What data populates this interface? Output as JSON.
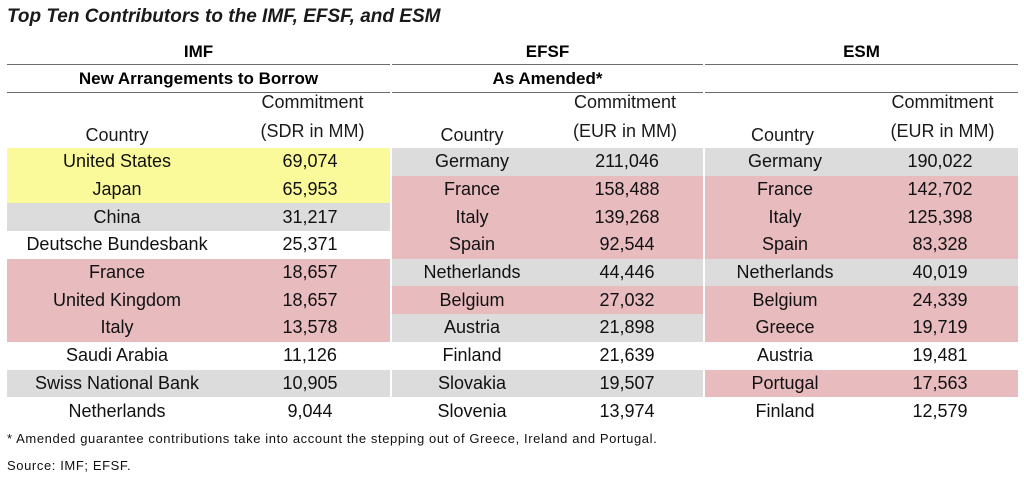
{
  "title": "Top Ten Contributors to the IMF, EFSF, and ESM",
  "colors": {
    "yellow": "#fafa9a",
    "grey": "#dcdcdc",
    "pink": "#e8bcbf",
    "white": "#ffffff"
  },
  "imf": {
    "header": "IMF",
    "subheader": "New Arrangements to Borrow",
    "col_country": "Country",
    "col_commit_1": "Commitment",
    "col_commit_2": "(SDR in MM)",
    "rows": [
      {
        "country": "United States",
        "value": "69,074",
        "color": "yellow"
      },
      {
        "country": "Japan",
        "value": "65,953",
        "color": "yellow"
      },
      {
        "country": "China",
        "value": "31,217",
        "color": "grey"
      },
      {
        "country": "Deutsche Bundesbank",
        "value": "25,371",
        "color": "white"
      },
      {
        "country": "France",
        "value": "18,657",
        "color": "pink"
      },
      {
        "country": "United Kingdom",
        "value": "18,657",
        "color": "pink"
      },
      {
        "country": "Italy",
        "value": "13,578",
        "color": "pink"
      },
      {
        "country": "Saudi Arabia",
        "value": "11,126",
        "color": "white"
      },
      {
        "country": "Swiss National Bank",
        "value": "10,905",
        "color": "grey"
      },
      {
        "country": "Netherlands",
        "value": "9,044",
        "color": "white"
      }
    ]
  },
  "efsf": {
    "header": "EFSF",
    "subheader": "As Amended*",
    "col_country": "Country",
    "col_commit_1": "Commitment",
    "col_commit_2": "(EUR in MM)",
    "rows": [
      {
        "country": "Germany",
        "value": "211,046",
        "color": "grey"
      },
      {
        "country": "France",
        "value": "158,488",
        "color": "pink"
      },
      {
        "country": "Italy",
        "value": "139,268",
        "color": "pink"
      },
      {
        "country": "Spain",
        "value": "92,544",
        "color": "pink"
      },
      {
        "country": "Netherlands",
        "value": "44,446",
        "color": "grey"
      },
      {
        "country": "Belgium",
        "value": "27,032",
        "color": "pink"
      },
      {
        "country": "Austria",
        "value": "21,898",
        "color": "grey"
      },
      {
        "country": "Finland",
        "value": "21,639",
        "color": "white"
      },
      {
        "country": "Slovakia",
        "value": "19,507",
        "color": "grey"
      },
      {
        "country": "Slovenia",
        "value": "13,974",
        "color": "white"
      }
    ]
  },
  "esm": {
    "header": "ESM",
    "subheader": "",
    "col_country": "Country",
    "col_commit_1": "Commitment",
    "col_commit_2": "(EUR in MM)",
    "rows": [
      {
        "country": "Germany",
        "value": "190,022",
        "color": "grey"
      },
      {
        "country": "France",
        "value": "142,702",
        "color": "pink"
      },
      {
        "country": "Italy",
        "value": "125,398",
        "color": "pink"
      },
      {
        "country": "Spain",
        "value": "83,328",
        "color": "pink"
      },
      {
        "country": "Netherlands",
        "value": "40,019",
        "color": "grey"
      },
      {
        "country": "Belgium",
        "value": "24,339",
        "color": "pink"
      },
      {
        "country": "Greece",
        "value": "19,719",
        "color": "pink"
      },
      {
        "country": "Austria",
        "value": "19,481",
        "color": "white"
      },
      {
        "country": "Portugal",
        "value": "17,563",
        "color": "pink"
      },
      {
        "country": "Finland",
        "value": "12,579",
        "color": "white"
      }
    ]
  },
  "footnote": "* Amended guarantee contributions take into account the stepping out of Greece, Ireland and Portugal.",
  "source": "Source: IMF; EFSF."
}
